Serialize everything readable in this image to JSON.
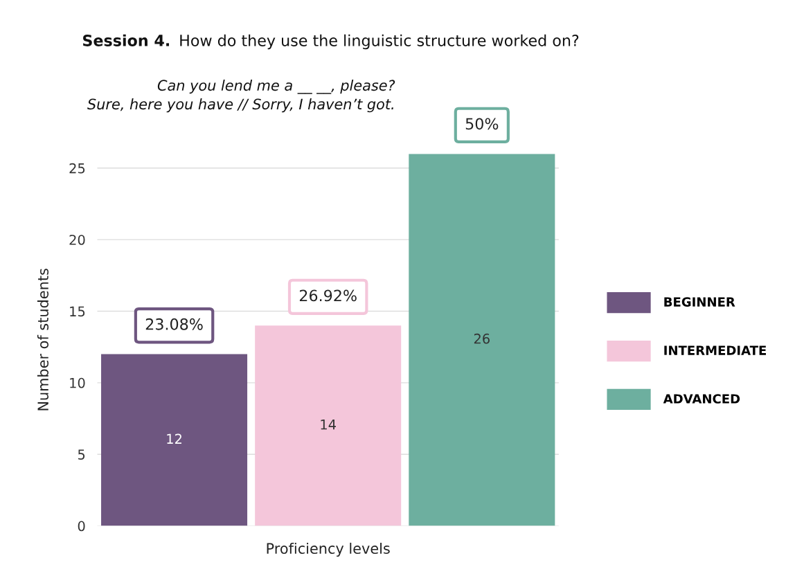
{
  "chart_data": {
    "type": "bar",
    "title": "Session 4. How do they use the linguistic structure worked on?",
    "subtitle": "Can you lend me a __ __, please?\nSure, here you have // Sorry, I haven’t got.",
    "xlabel": "Proficiency levels",
    "ylabel": "Number of students",
    "categories": [
      null
    ],
    "series": [
      {
        "name": "BEGINNER",
        "color": "#6e5680",
        "values": [
          12
        ],
        "value_labels": [
          "12"
        ]
      },
      {
        "name": "INTERMEDIATE",
        "color": "#f4c6da",
        "values": [
          14
        ],
        "value_labels": [
          "14"
        ]
      },
      {
        "name": "ADVANCED",
        "color": "#6daf9f",
        "values": [
          26
        ],
        "value_labels": [
          "26"
        ]
      }
    ],
    "annotations": [
      {
        "text": "23.08%",
        "y": 12
      },
      {
        "text": "26.92%",
        "y": 14
      },
      {
        "text": "50%",
        "y": 26
      }
    ],
    "ylim": [
      0,
      26
    ],
    "yticks": [
      0,
      5,
      10,
      15,
      20,
      25
    ],
    "grid": "y",
    "legend": "right"
  }
}
